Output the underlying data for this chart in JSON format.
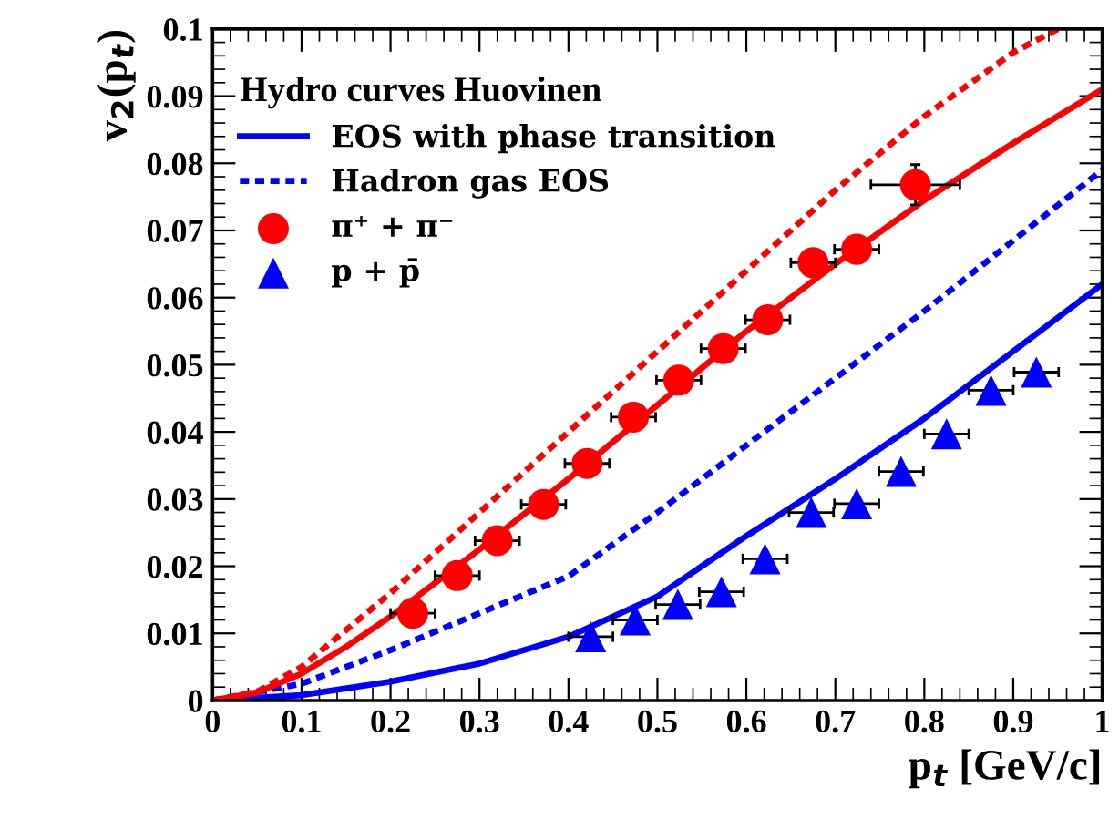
{
  "chart_data": {
    "type": "line",
    "xlabel": "p$_{t}$ [GeV/c]",
    "ylabel": "v$_{2}$(p$_{t}$)",
    "legend_title": "Hydro curves Huovinen",
    "legend": "top left",
    "xlim": [
      0,
      1
    ],
    "ylim": [
      0,
      0.1
    ],
    "xticks": [
      0,
      0.1,
      0.2,
      0.3,
      0.4,
      0.5,
      0.6,
      0.7,
      0.8,
      0.9,
      1
    ],
    "yticks": [
      0,
      0.01,
      0.02,
      0.03,
      0.04,
      0.05,
      0.06,
      0.07,
      0.08,
      0.09,
      0.1
    ],
    "series": [
      {
        "name": "EOS with phase transition",
        "line_style": "solid",
        "color": "#0000ff",
        "x": [
          0,
          0.1,
          0.2,
          0.3,
          0.4,
          0.5,
          0.6,
          0.7,
          0.8,
          0.9,
          1
        ],
        "values": [
          0,
          0.0008,
          0.0028,
          0.0055,
          0.0095,
          0.0155,
          0.0245,
          0.033,
          0.042,
          0.052,
          0.062
        ]
      },
      {
        "name": "Hadron gas EOS",
        "line_style": "dotted",
        "color": "#0000ff",
        "x": [
          0,
          0.1,
          0.2,
          0.3,
          0.4,
          0.5,
          0.6,
          0.7,
          0.8,
          0.9,
          1
        ],
        "values": [
          0,
          0.0025,
          0.0075,
          0.013,
          0.0185,
          0.028,
          0.038,
          0.048,
          0.058,
          0.0685,
          0.079
        ]
      },
      {
        "line_style": "solid",
        "color": "#ff0000",
        "x": [
          0,
          0.05,
          0.1,
          0.15,
          0.2,
          0.3,
          0.4,
          0.5,
          0.6,
          0.7,
          0.8,
          0.9,
          1
        ],
        "values": [
          0,
          0.0012,
          0.004,
          0.008,
          0.0125,
          0.0225,
          0.033,
          0.044,
          0.055,
          0.065,
          0.0745,
          0.083,
          0.091
        ]
      },
      {
        "line_style": "dotted",
        "color": "#ff0000",
        "x": [
          0,
          0.05,
          0.1,
          0.2,
          0.3,
          0.4,
          0.5,
          0.6,
          0.7,
          0.8,
          0.9,
          0.95
        ],
        "values": [
          0,
          0.0013,
          0.005,
          0.016,
          0.028,
          0.04,
          0.052,
          0.064,
          0.076,
          0.087,
          0.0965,
          0.1
        ]
      },
      {
        "name": "π⁺ + π⁻",
        "type": "scatter",
        "marker": "circle",
        "color": "#ff0000",
        "x": [
          0.225,
          0.275,
          0.32,
          0.372,
          0.421,
          0.473,
          0.524,
          0.574,
          0.624,
          0.675,
          0.724,
          0.79
        ],
        "values": [
          0.013,
          0.0186,
          0.0238,
          0.0292,
          0.0353,
          0.0422,
          0.0477,
          0.0524,
          0.0567,
          0.0652,
          0.0672,
          0.0768
        ],
        "xerrors": [
          0.025,
          0.025,
          0.025,
          0.025,
          0.025,
          0.025,
          0.025,
          0.025,
          0.025,
          0.025,
          0.025,
          0.05
        ],
        "errors": [
          null,
          null,
          null,
          null,
          null,
          null,
          null,
          null,
          null,
          null,
          null,
          0.003
        ]
      },
      {
        "name": "p + p̄",
        "type": "scatter",
        "marker": "triangle",
        "color": "#0000ff",
        "x": [
          0.425,
          0.475,
          0.523,
          0.572,
          0.621,
          0.673,
          0.724,
          0.774,
          0.825,
          0.875,
          0.926
        ],
        "values": [
          0.0095,
          0.012,
          0.0143,
          0.0162,
          0.0211,
          0.028,
          0.0293,
          0.0341,
          0.0397,
          0.0462,
          0.0489
        ],
        "xerrors": [
          0.025,
          0.025,
          0.025,
          0.025,
          0.025,
          0.025,
          0.025,
          0.025,
          0.025,
          0.025,
          0.025
        ]
      }
    ]
  }
}
